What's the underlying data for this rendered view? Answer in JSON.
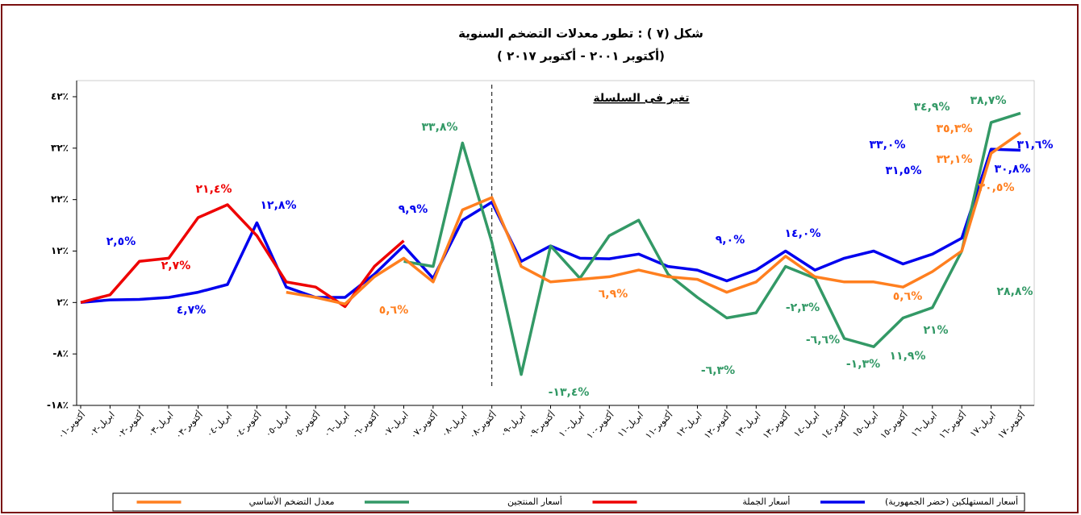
{
  "chart_data": {
    "type": "line",
    "title": "شكل (٧ ) : تطور معدلات التضخم السنوية",
    "subtitle": "( أكتوبر ٢٠٠١ - أكتوبر ٢٠١٧)",
    "series_break_label": "تغير فى السلسلة",
    "categories": [
      "أكتوبر-٠١",
      "ابريل-٠٢",
      "أكتوبر-٠٢",
      "ابريل-٠٣",
      "أكتوبر-٠٣",
      "ابريل-٠٤",
      "أكتوبر-٠٤",
      "ابريل-٠٥",
      "أكتوبر-٠٥",
      "ابريل-٠٦",
      "أكتوبر-٠٦",
      "ابريل-٠٧",
      "أكتوبر-٠٧",
      "ابريل-٠٨",
      "أكتوبر-٠٨",
      "ابريل-٠٩",
      "أكتوبر-٠٩",
      "ابريل-١٠",
      "أكتوبر-١٠",
      "ابريل-١١",
      "أكتوبر-١١",
      "ابريل-١٢",
      "أكتوبر-١٢",
      "ابريل-١٣",
      "أكتوبر-١٣",
      "ابريل-١٤",
      "أكتوبر-١٤",
      "ابريل-١٥",
      "أكتوبر-١٥",
      "ابريل-١٦",
      "أكتوبر-١٦",
      "ابريل-١٧",
      "أكتوبر-١٧"
    ],
    "series_break_category": 14,
    "series": [
      {
        "name": "أسعار المستهلكين (حضر الجمهورية)",
        "color": "#0000ee",
        "values": [
          2.0,
          2.5,
          2.6,
          3.0,
          4.0,
          5.5,
          17.5,
          5.0,
          3.0,
          3.0,
          7.5,
          13.0,
          6.7,
          18.0,
          21.5,
          10.0,
          13.0,
          10.6,
          10.5,
          11.4,
          9.0,
          8.3,
          6.2,
          8.3,
          12.0,
          8.3,
          10.6,
          12.0,
          9.5,
          11.4,
          14.5,
          31.8,
          31.6
        ]
      },
      {
        "name": "أسعار الجملة",
        "color": "#ee0000",
        "values": [
          2.0,
          3.5,
          10.0,
          10.6,
          18.5,
          21.0,
          15.0,
          6.0,
          5.0,
          1.2,
          9.0,
          14.0,
          null,
          null,
          null,
          null,
          null,
          null,
          null,
          null,
          null,
          null,
          null,
          null,
          null,
          null,
          null,
          null,
          null,
          null,
          null,
          null,
          null
        ]
      },
      {
        "name": "أسعار المنتجين",
        "color": "#339966",
        "values": [
          null,
          null,
          null,
          null,
          null,
          null,
          null,
          null,
          null,
          null,
          null,
          10.0,
          9.0,
          33.0,
          13.7,
          -12.0,
          13.0,
          6.7,
          15.0,
          18.0,
          7.5,
          3.0,
          -1.0,
          0.0,
          9.0,
          6.7,
          -5.0,
          -6.6,
          -1.0,
          1.0,
          12.0,
          37.0,
          38.8
        ]
      },
      {
        "name": "معدل التضخم الأساسي",
        "color": "#ff7f1f",
        "values": [
          null,
          null,
          null,
          null,
          null,
          null,
          null,
          4.0,
          3.0,
          1.7,
          7.0,
          10.6,
          6.0,
          20.0,
          22.4,
          9.0,
          6.0,
          6.5,
          7.0,
          8.3,
          7.0,
          6.5,
          4.0,
          6.0,
          11.0,
          7.0,
          6.0,
          6.0,
          5.0,
          8.0,
          12.0,
          31.0,
          35.0
        ]
      }
    ],
    "annotations": [
      {
        "text": "٢,٥%",
        "color": "#0000ee"
      },
      {
        "text": "١٢,٨%",
        "color": "#0000ee"
      },
      {
        "text": "٤,٧%",
        "color": "#0000ee"
      },
      {
        "text": "٢١,٤%",
        "color": "#ee0000"
      },
      {
        "text": "٢,٧%",
        "color": "#ee0000"
      },
      {
        "text": "٥,٦%",
        "color": "#ff7f1f"
      },
      {
        "text": "٩,٩%",
        "color": "#0000ee"
      },
      {
        "text": "٣٣,٨%",
        "color": "#339966"
      },
      {
        "text": "-١٣,٤%",
        "color": "#339966"
      },
      {
        "text": "٦,٩%",
        "color": "#ff7f1f"
      },
      {
        "text": "٩,٠%",
        "color": "#0000ee"
      },
      {
        "text": "١٤,٠%",
        "color": "#0000ee"
      },
      {
        "text": "-٦,٣%",
        "color": "#339966"
      },
      {
        "text": "-٢,٣%",
        "color": "#339966"
      },
      {
        "text": "-٦,٦%",
        "color": "#339966"
      },
      {
        "text": "-١,٣%",
        "color": "#339966"
      },
      {
        "text": "١١,٩%",
        "color": "#339966"
      },
      {
        "text": "٢١%",
        "color": "#339966"
      },
      {
        "text": "٢٨,٨%",
        "color": "#339966"
      },
      {
        "text": "٥,٦%",
        "color": "#ff7f1f"
      },
      {
        "text": "٣٣,٠%",
        "color": "#0000ee"
      },
      {
        "text": "٣١,٥%",
        "color": "#0000ee"
      },
      {
        "text": "٣٨,٧%",
        "color": "#339966"
      },
      {
        "text": "٣٤,٩%",
        "color": "#339966"
      },
      {
        "text": "٣٥,٣%",
        "color": "#ff7f1f"
      },
      {
        "text": "٣٢,١%",
        "color": "#ff7f1f"
      },
      {
        "text": "٣١,٦%",
        "color": "#0000ee"
      },
      {
        "text": "٣٠,٨%",
        "color": "#0000ee"
      },
      {
        "text": "٣٠,٥%",
        "color": "#ff7f1f"
      }
    ],
    "ylim": [
      -18,
      42
    ],
    "yticks": [
      {
        "value": -18,
        "label": "-١٨٪"
      },
      {
        "value": -8,
        "label": "-٨٪"
      },
      {
        "value": 2,
        "label": "٢٪"
      },
      {
        "value": 12,
        "label": "١٢٪"
      },
      {
        "value": 22,
        "label": "٢٢٪"
      },
      {
        "value": 32,
        "label": "٣٢٪"
      },
      {
        "value": 42,
        "label": "٤٢٪"
      }
    ],
    "grid": false,
    "legend": "bottom"
  }
}
